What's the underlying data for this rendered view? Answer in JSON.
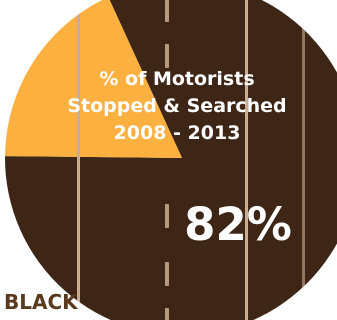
{
  "chart_data": {
    "type": "pie",
    "title_lines": [
      "% of Motorists",
      "Stopped & Searched",
      "2008 - 2013"
    ],
    "slices": [
      {
        "label": "",
        "value": 82,
        "value_label": "82%",
        "color": "#3e2617"
      },
      {
        "label": "BLACK",
        "value": 18,
        "value_label": "",
        "color": "#fbb040"
      }
    ]
  },
  "colors": {
    "road_line": "#b89a7e",
    "road_edge": "#c9ad90",
    "left_ring": "#9a8f88",
    "black_label": "#5a3a1e"
  }
}
